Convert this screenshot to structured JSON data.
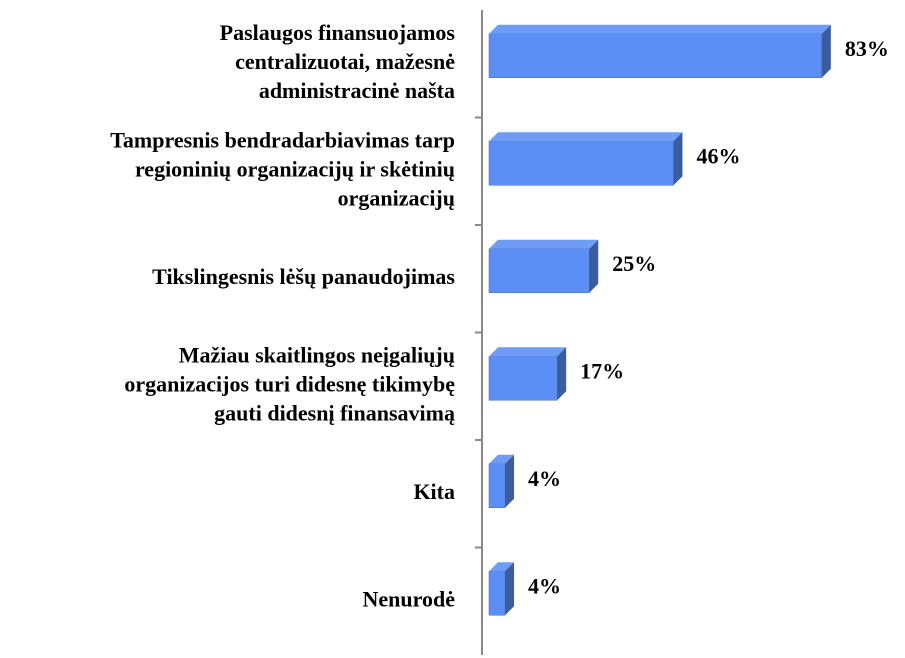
{
  "chart_data": {
    "type": "bar",
    "orientation": "horizontal",
    "categories": [
      [
        "Paslaugos finansuojamos",
        "centralizuotai, mažesnė",
        "administracinė našta"
      ],
      [
        "Tampresnis bendradarbiavimas tarp",
        "regioninių organizacijų ir skėtinių",
        "organizacijų"
      ],
      [
        "Tikslingesnis lėšų panaudojimas"
      ],
      [
        "Mažiau skaitlingos neįgaliųjų",
        "organizacijos turi didesnę tikimybę",
        "gauti didesnį finansavimą"
      ],
      [
        "Kita"
      ],
      [
        "Nenurodė"
      ]
    ],
    "values": [
      83,
      46,
      25,
      17,
      4,
      4
    ],
    "value_labels": [
      "83%",
      "46%",
      "25%",
      "17%",
      "4%",
      "4%"
    ],
    "color": "#5b8ff5",
    "xlim": [
      0,
      100
    ]
  }
}
